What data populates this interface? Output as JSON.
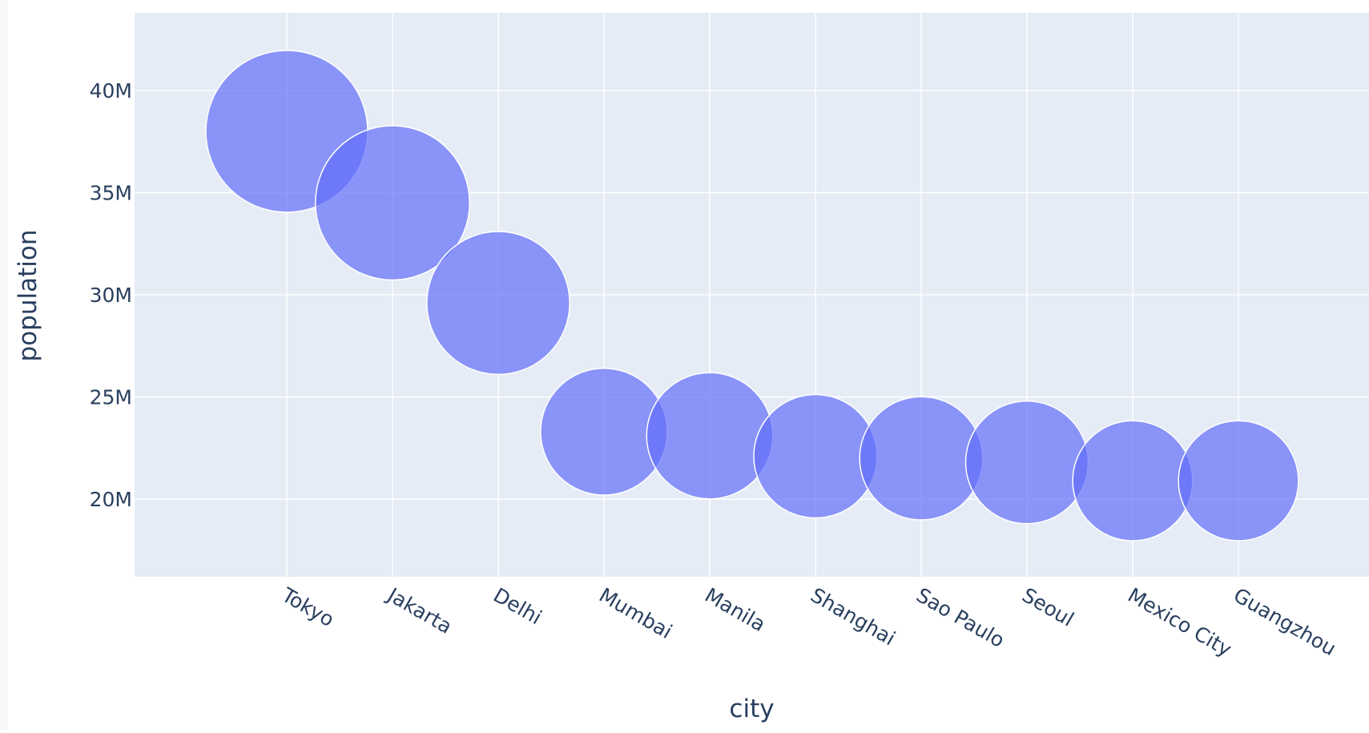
{
  "chart_data": {
    "type": "scatter",
    "xlabel": "city",
    "ylabel": "population",
    "categories": [
      "Tokyo",
      "Jakarta",
      "Delhi",
      "Mumbai",
      "Manila",
      "Shanghai",
      "Sao Paulo",
      "Seoul",
      "Mexico City",
      "Guangzhou"
    ],
    "series": [
      {
        "values": [
          38000000,
          34500000,
          29600000,
          23300000,
          23100000,
          22100000,
          22000000,
          21800000,
          20900000,
          20900000
        ],
        "sizes": [
          38000000,
          34500000,
          29600000,
          23300000,
          23100000,
          22100000,
          22000000,
          21800000,
          20900000,
          20900000
        ],
        "color": "#636efa"
      }
    ],
    "ylim": [
      16200000,
      43800000
    ],
    "yticks": [
      20000000,
      25000000,
      30000000,
      35000000,
      40000000
    ],
    "ytick_labels": [
      "20M",
      "25M",
      "30M",
      "35M",
      "40M"
    ],
    "grid": true,
    "marker_opacity": 0.7,
    "plot_background": "#e5ecf6",
    "grid_color": "#ffffff",
    "text_color": "#2a3f5f"
  }
}
